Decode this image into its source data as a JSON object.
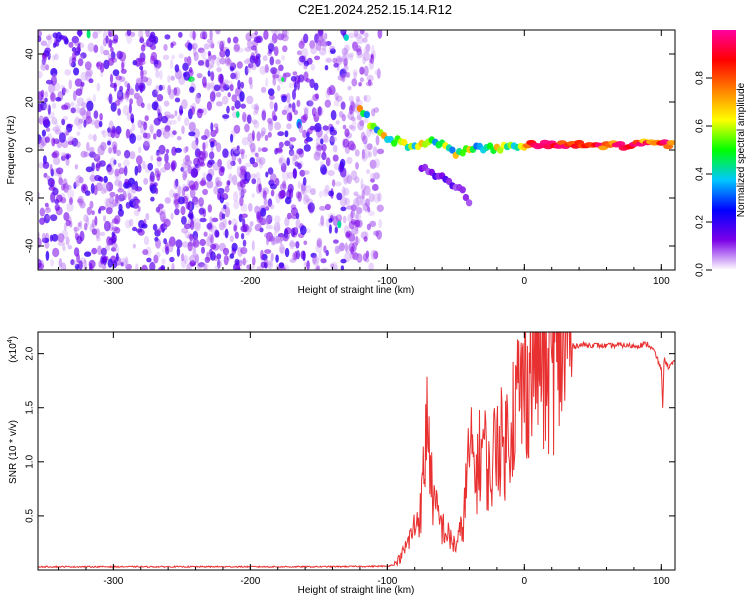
{
  "title": "C2E1.2024.252.15.14.R12",
  "chart_data": [
    {
      "type": "heatmap",
      "name": "spectrogram",
      "xlabel": "Height of straight line (km)",
      "ylabel": "Frequency (Hz)",
      "xlim": [
        -355,
        110
      ],
      "ylim": [
        -50,
        50
      ],
      "xticks": [
        -300,
        -200,
        -100,
        0,
        100
      ],
      "yticks": [
        -40,
        -20,
        0,
        20,
        40
      ],
      "colorbar": {
        "label": "Normalized spectral amplitude",
        "range": [
          0,
          1
        ],
        "ticks": [
          "0.0",
          "0.2",
          "0.4",
          "0.6",
          "0.8"
        ],
        "colors": [
          "#ffffff",
          "#7b00e8",
          "#0000ff",
          "#00c8ff",
          "#00ff00",
          "#ffff00",
          "#ff8000",
          "#ff0000",
          "#ff00a0"
        ]
      },
      "noise_region": {
        "x_range": [
          -355,
          -105
        ],
        "f_range": [
          -50,
          50
        ]
      },
      "signal_track": [
        {
          "x": -120,
          "f": 18
        },
        {
          "x": -110,
          "f": 9
        },
        {
          "x": -100,
          "f": 5
        },
        {
          "x": -90,
          "f": 3
        },
        {
          "x": -80,
          "f": 1
        },
        {
          "x": -70,
          "f": 4
        },
        {
          "x": -60,
          "f": 2
        },
        {
          "x": -50,
          "f": -1
        },
        {
          "x": -40,
          "f": 1
        },
        {
          "x": -30,
          "f": 0
        },
        {
          "x": -20,
          "f": 1
        },
        {
          "x": -10,
          "f": 1
        },
        {
          "x": 0,
          "f": 2
        },
        {
          "x": 20,
          "f": 2
        },
        {
          "x": 40,
          "f": 2
        },
        {
          "x": 60,
          "f": 2
        },
        {
          "x": 80,
          "f": 2
        },
        {
          "x": 95,
          "f": 3
        },
        {
          "x": 110,
          "f": 2
        }
      ],
      "secondary_track": [
        {
          "x": -75,
          "f": -7
        },
        {
          "x": -65,
          "f": -10
        },
        {
          "x": -55,
          "f": -13
        },
        {
          "x": -45,
          "f": -17
        },
        {
          "x": -38,
          "f": -24
        }
      ]
    },
    {
      "type": "line",
      "name": "snr",
      "xlabel": "Height of straight line (km)",
      "ylabel": "SNR (10 * v/v)",
      "y_multiplier": "(x10",
      "y_multiplier_exp": "4",
      "xlim": [
        -355,
        110
      ],
      "ylim": [
        0,
        22000
      ],
      "xticks": [
        -300,
        -200,
        -100,
        0,
        100
      ],
      "yticks": [
        "0.5",
        "1.0",
        "1.5",
        "2.0"
      ],
      "color": "#e83030",
      "series": [
        {
          "x": -355,
          "y": 300
        },
        {
          "x": -250,
          "y": 300
        },
        {
          "x": -150,
          "y": 300
        },
        {
          "x": -100,
          "y": 350
        },
        {
          "x": -95,
          "y": 500
        },
        {
          "x": -90,
          "y": 1200
        },
        {
          "x": -85,
          "y": 2500
        },
        {
          "x": -80,
          "y": 4000
        },
        {
          "x": -75,
          "y": 6000
        },
        {
          "x": -72,
          "y": 12000
        },
        {
          "x": -70,
          "y": 14800
        },
        {
          "x": -68,
          "y": 8000
        },
        {
          "x": -65,
          "y": 5500
        },
        {
          "x": -60,
          "y": 4000
        },
        {
          "x": -55,
          "y": 3000
        },
        {
          "x": -50,
          "y": 2200
        },
        {
          "x": -45,
          "y": 4000
        },
        {
          "x": -40,
          "y": 11000
        },
        {
          "x": -35,
          "y": 9000
        },
        {
          "x": -30,
          "y": 12000
        },
        {
          "x": -25,
          "y": 8000
        },
        {
          "x": -20,
          "y": 13000
        },
        {
          "x": -15,
          "y": 11000
        },
        {
          "x": -10,
          "y": 14000
        },
        {
          "x": -5,
          "y": 16000
        },
        {
          "x": 0,
          "y": 17000
        },
        {
          "x": 5,
          "y": 19000
        },
        {
          "x": 10,
          "y": 21000
        },
        {
          "x": 15,
          "y": 17500
        },
        {
          "x": 20,
          "y": 19000
        },
        {
          "x": 25,
          "y": 20000
        },
        {
          "x": 30,
          "y": 20500
        },
        {
          "x": 40,
          "y": 20800
        },
        {
          "x": 50,
          "y": 20800
        },
        {
          "x": 60,
          "y": 20700
        },
        {
          "x": 70,
          "y": 20800
        },
        {
          "x": 80,
          "y": 20700
        },
        {
          "x": 90,
          "y": 20900
        },
        {
          "x": 95,
          "y": 20200
        },
        {
          "x": 100,
          "y": 18500
        },
        {
          "x": 101,
          "y": 15200
        },
        {
          "x": 102,
          "y": 19500
        },
        {
          "x": 105,
          "y": 18800
        },
        {
          "x": 110,
          "y": 19200
        }
      ]
    }
  ]
}
